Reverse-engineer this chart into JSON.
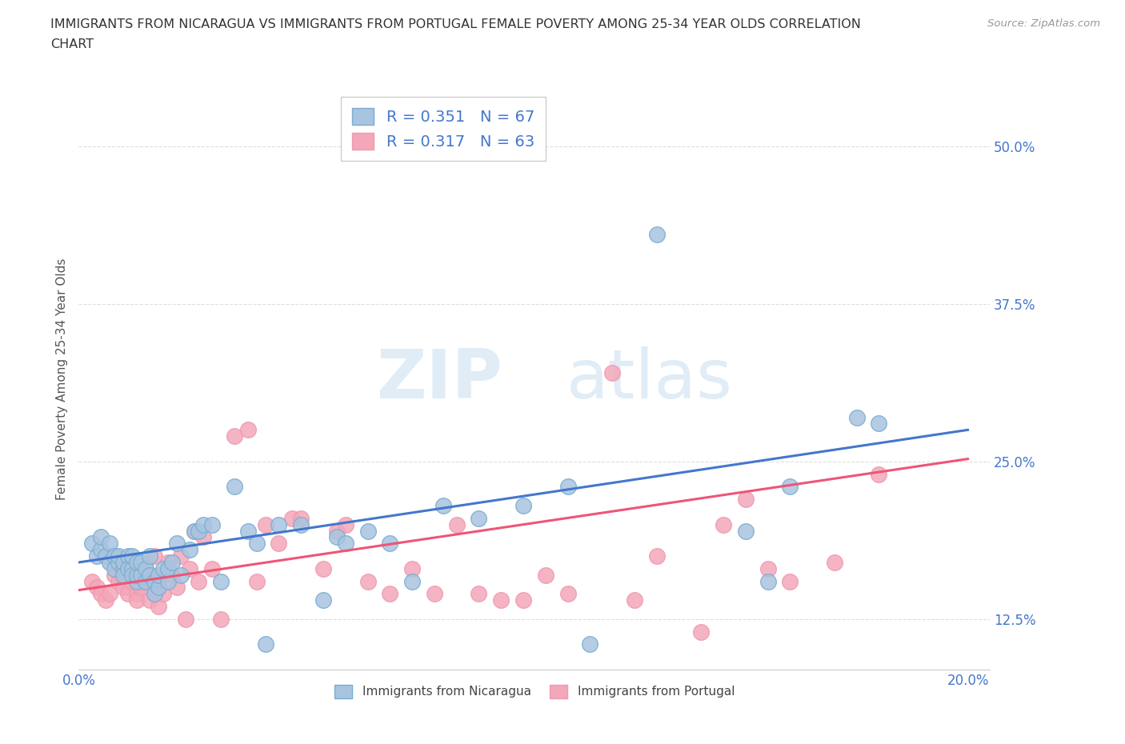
{
  "title_line1": "IMMIGRANTS FROM NICARAGUA VS IMMIGRANTS FROM PORTUGAL FEMALE POVERTY AMONG 25-34 YEAR OLDS CORRELATION",
  "title_line2": "CHART",
  "source": "Source: ZipAtlas.com",
  "ylabel": "Female Poverty Among 25-34 Year Olds",
  "xlim": [
    0.0,
    0.205
  ],
  "ylim": [
    0.085,
    0.545
  ],
  "xticks": [
    0.0,
    0.05,
    0.1,
    0.15,
    0.2
  ],
  "xticklabels": [
    "0.0%",
    "",
    "",
    "",
    "20.0%"
  ],
  "yticks": [
    0.125,
    0.25,
    0.375,
    0.5
  ],
  "yticklabels": [
    "12.5%",
    "25.0%",
    "37.5%",
    "50.0%"
  ],
  "nicaragua_color": "#a8c4e0",
  "portugal_color": "#f4a7b9",
  "nicaragua_edge_color": "#7aadd0",
  "portugal_edge_color": "#ee99b0",
  "nicaragua_line_color": "#4477cc",
  "portugal_line_color": "#ee5577",
  "r_nicaragua": 0.351,
  "n_nicaragua": 67,
  "r_portugal": 0.317,
  "n_portugal": 63,
  "legend_label_nicaragua": "Immigrants from Nicaragua",
  "legend_label_portugal": "Immigrants from Portugal",
  "watermark_zip": "ZIP",
  "watermark_atlas": "atlas",
  "background_color": "#ffffff",
  "grid_color": "#dddddd",
  "title_color": "#333333",
  "source_color": "#999999",
  "tick_color": "#4477cc",
  "ylabel_color": "#555555",
  "nicaragua_x": [
    0.003,
    0.004,
    0.005,
    0.005,
    0.006,
    0.007,
    0.007,
    0.008,
    0.008,
    0.009,
    0.009,
    0.01,
    0.01,
    0.01,
    0.011,
    0.011,
    0.012,
    0.012,
    0.012,
    0.013,
    0.013,
    0.013,
    0.014,
    0.014,
    0.015,
    0.015,
    0.016,
    0.016,
    0.017,
    0.017,
    0.018,
    0.018,
    0.019,
    0.02,
    0.02,
    0.021,
    0.022,
    0.023,
    0.025,
    0.026,
    0.027,
    0.028,
    0.03,
    0.032,
    0.035,
    0.038,
    0.04,
    0.042,
    0.045,
    0.05,
    0.055,
    0.058,
    0.06,
    0.065,
    0.07,
    0.075,
    0.082,
    0.09,
    0.1,
    0.11,
    0.115,
    0.13,
    0.15,
    0.155,
    0.16,
    0.175,
    0.18
  ],
  "nicaragua_y": [
    0.185,
    0.175,
    0.18,
    0.19,
    0.175,
    0.17,
    0.185,
    0.175,
    0.165,
    0.17,
    0.175,
    0.165,
    0.17,
    0.16,
    0.175,
    0.165,
    0.165,
    0.175,
    0.16,
    0.155,
    0.16,
    0.17,
    0.16,
    0.17,
    0.155,
    0.165,
    0.16,
    0.175,
    0.155,
    0.145,
    0.15,
    0.16,
    0.165,
    0.155,
    0.165,
    0.17,
    0.185,
    0.16,
    0.18,
    0.195,
    0.195,
    0.2,
    0.2,
    0.155,
    0.23,
    0.195,
    0.185,
    0.105,
    0.2,
    0.2,
    0.14,
    0.19,
    0.185,
    0.195,
    0.185,
    0.155,
    0.215,
    0.205,
    0.215,
    0.23,
    0.105,
    0.43,
    0.195,
    0.155,
    0.23,
    0.285,
    0.28
  ],
  "portugal_x": [
    0.003,
    0.004,
    0.005,
    0.006,
    0.007,
    0.008,
    0.009,
    0.01,
    0.011,
    0.011,
    0.012,
    0.013,
    0.013,
    0.014,
    0.015,
    0.015,
    0.016,
    0.017,
    0.017,
    0.018,
    0.018,
    0.019,
    0.02,
    0.021,
    0.022,
    0.023,
    0.024,
    0.025,
    0.026,
    0.027,
    0.028,
    0.03,
    0.032,
    0.035,
    0.038,
    0.04,
    0.042,
    0.045,
    0.048,
    0.05,
    0.055,
    0.058,
    0.06,
    0.065,
    0.07,
    0.075,
    0.08,
    0.085,
    0.09,
    0.095,
    0.1,
    0.105,
    0.11,
    0.12,
    0.125,
    0.13,
    0.14,
    0.145,
    0.15,
    0.155,
    0.16,
    0.17,
    0.18
  ],
  "portugal_y": [
    0.155,
    0.15,
    0.145,
    0.14,
    0.145,
    0.16,
    0.155,
    0.15,
    0.145,
    0.165,
    0.155,
    0.145,
    0.14,
    0.15,
    0.155,
    0.165,
    0.14,
    0.175,
    0.145,
    0.135,
    0.155,
    0.145,
    0.17,
    0.16,
    0.15,
    0.175,
    0.125,
    0.165,
    0.195,
    0.155,
    0.19,
    0.165,
    0.125,
    0.27,
    0.275,
    0.155,
    0.2,
    0.185,
    0.205,
    0.205,
    0.165,
    0.195,
    0.2,
    0.155,
    0.145,
    0.165,
    0.145,
    0.2,
    0.145,
    0.14,
    0.14,
    0.16,
    0.145,
    0.32,
    0.14,
    0.175,
    0.115,
    0.2,
    0.22,
    0.165,
    0.155,
    0.17,
    0.24
  ]
}
